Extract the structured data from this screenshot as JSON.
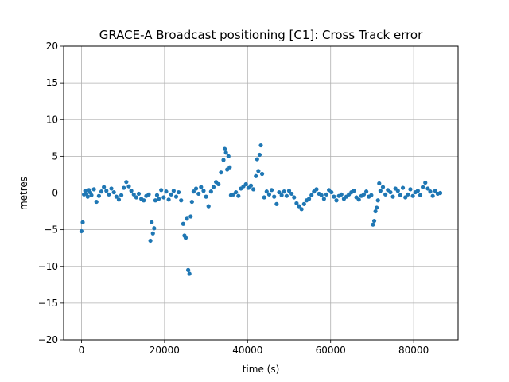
{
  "chart_data": {
    "type": "scatter",
    "title": "GRACE-A Broadcast positioning [C1]: Cross Track error",
    "xlabel": "time (s)",
    "ylabel": "metres",
    "xlim": [
      -4300,
      90700
    ],
    "ylim": [
      -20,
      20
    ],
    "xticks": [
      0,
      20000,
      40000,
      60000,
      80000
    ],
    "yticks": [
      -20,
      -15,
      -10,
      -5,
      0,
      5,
      10,
      15,
      20
    ],
    "grid": true,
    "marker_color": "#1f77b4",
    "series": [
      {
        "x": [
          0,
          300,
          600,
          900,
          1200,
          1500,
          1800,
          2100,
          2400,
          3000,
          3600,
          4200,
          4800,
          5400,
          6000,
          6600,
          7200,
          7800,
          8400,
          9000,
          9600,
          10200,
          10800,
          11400,
          12000,
          12600,
          13200,
          13800,
          14400,
          15000,
          15600,
          16200,
          16600,
          16900,
          17200,
          17500,
          17800,
          18200,
          18600,
          19200,
          19800,
          20400,
          21000,
          21600,
          22200,
          22800,
          23400,
          24000,
          24500,
          24800,
          25100,
          25400,
          25700,
          26000,
          26300,
          26600,
          27000,
          27600,
          28200,
          28800,
          29400,
          30000,
          30600,
          31200,
          31800,
          32400,
          33000,
          33600,
          34200,
          34500,
          34800,
          35100,
          35400,
          35700,
          36000,
          36600,
          37200,
          37800,
          38400,
          39000,
          39600,
          40200,
          40800,
          41400,
          42000,
          42300,
          42600,
          42900,
          43200,
          43500,
          44000,
          44600,
          45200,
          45800,
          46400,
          47000,
          47600,
          48200,
          48800,
          49400,
          50000,
          50600,
          51200,
          51800,
          52400,
          53000,
          53600,
          54200,
          54800,
          55400,
          56000,
          56600,
          57200,
          57800,
          58400,
          59000,
          59600,
          60200,
          60800,
          61400,
          62000,
          62600,
          63200,
          63800,
          64400,
          65000,
          65600,
          66200,
          66800,
          67400,
          68000,
          68600,
          69200,
          69800,
          70200,
          70500,
          70800,
          71100,
          71400,
          71700,
          72000,
          72600,
          73200,
          73800,
          74400,
          75000,
          75600,
          76200,
          76800,
          77400,
          78000,
          78600,
          79200,
          79800,
          80400,
          81000,
          81600,
          82200,
          82800,
          83400,
          84000,
          84600,
          85200,
          85800,
          86400
        ],
        "values": [
          -5.2,
          -4.0,
          -0.2,
          0.3,
          -0.1,
          -0.5,
          0.4,
          0.1,
          -0.3,
          0.5,
          -1.2,
          -0.4,
          0.2,
          0.8,
          0.3,
          -0.2,
          0.6,
          0.1,
          -0.5,
          -0.9,
          -0.3,
          0.7,
          1.5,
          0.9,
          0.3,
          -0.2,
          -0.6,
          -0.1,
          -0.8,
          -1.0,
          -0.4,
          -0.2,
          -6.5,
          -4.0,
          -5.5,
          -4.8,
          -1.0,
          -0.3,
          -0.8,
          0.4,
          -0.6,
          0.2,
          -0.9,
          -0.2,
          0.3,
          -0.5,
          0.1,
          -1.0,
          -4.2,
          -5.8,
          -6.1,
          -3.5,
          -10.5,
          -11.0,
          -3.2,
          -1.2,
          0.2,
          0.6,
          -0.1,
          0.8,
          0.3,
          -0.5,
          -1.8,
          0.2,
          0.8,
          1.5,
          1.2,
          2.8,
          4.5,
          6.0,
          5.5,
          3.2,
          5.0,
          3.5,
          -0.3,
          -0.2,
          0.1,
          -0.4,
          0.6,
          0.9,
          1.2,
          0.7,
          1.0,
          0.5,
          2.3,
          4.6,
          3.0,
          5.2,
          6.5,
          2.6,
          -0.6,
          0.2,
          -0.2,
          0.4,
          -0.5,
          -1.5,
          0.1,
          -0.3,
          0.2,
          -0.4,
          0.3,
          -0.1,
          -0.6,
          -1.4,
          -1.8,
          -2.2,
          -1.5,
          -1.0,
          -0.8,
          -0.3,
          0.2,
          0.5,
          -0.1,
          -0.3,
          -0.8,
          -0.2,
          0.4,
          0.1,
          -0.5,
          -1.0,
          -0.4,
          -0.2,
          -0.8,
          -0.5,
          -0.2,
          0.1,
          0.3,
          -0.6,
          -0.9,
          -0.4,
          -0.2,
          0.2,
          -0.5,
          -0.3,
          -4.3,
          -3.8,
          -2.5,
          -2.0,
          -1.0,
          1.3,
          0.3,
          0.8,
          -0.2,
          0.4,
          0.1,
          -0.5,
          0.6,
          0.3,
          -0.3,
          0.7,
          -0.6,
          -0.2,
          0.5,
          -0.4,
          0.1,
          0.3,
          -0.3,
          0.8,
          1.4,
          0.6,
          0.2,
          -0.4,
          0.3,
          -0.1,
          0.0
        ]
      }
    ]
  }
}
